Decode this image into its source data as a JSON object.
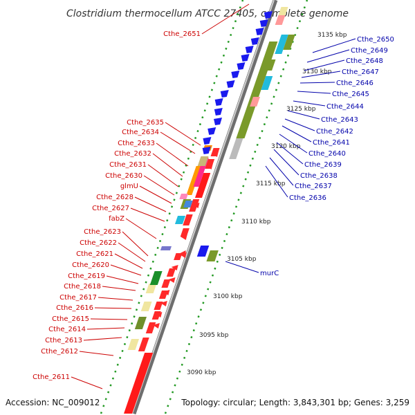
{
  "title": "Clostridium thermocellum ATCC 27405, complete genome",
  "footer": {
    "accession": "Accession: NC_009012",
    "topology": "Topology: circular; Length: 3,843,301 bp; Genes: 3,259"
  },
  "colors": {
    "reverse_label": "#cc0000",
    "forward_label": "#0000aa",
    "reverse_feature": "#ff0000",
    "forward_feature": "#0000ee",
    "backbone": "#999999",
    "gc_dots": "#22aa22"
  },
  "scale_ticks": [
    {
      "label": "3090 kbp",
      "kbp": 3090
    },
    {
      "label": "3095 kbp",
      "kbp": 3095
    },
    {
      "label": "3100 kbp",
      "kbp": 3100
    },
    {
      "label": "3105 kbp",
      "kbp": 3105
    },
    {
      "label": "3110 kbp",
      "kbp": 3110
    },
    {
      "label": "3115 kbp",
      "kbp": 3115
    },
    {
      "label": "3120 kbp",
      "kbp": 3120
    },
    {
      "label": "3125 kbp",
      "kbp": 3125
    },
    {
      "label": "3130 kbp",
      "kbp": 3130
    },
    {
      "label": "3135 kbp",
      "kbp": 3135
    }
  ],
  "reverse_genes": [
    "Cthe_2651",
    "Cthe_2635",
    "Cthe_2634",
    "Cthe_2633",
    "Cthe_2632",
    "Cthe_2631",
    "Cthe_2630",
    "glmU",
    "Cthe_2628",
    "Cthe_2627",
    "fabZ",
    "Cthe_2623",
    "Cthe_2622",
    "Cthe_2621",
    "Cthe_2620",
    "Cthe_2619",
    "Cthe_2618",
    "Cthe_2617",
    "Cthe_2616",
    "Cthe_2615",
    "Cthe_2614",
    "Cthe_2613",
    "Cthe_2612",
    "Cthe_2611"
  ],
  "forward_genes": [
    "Cthe_2650",
    "Cthe_2649",
    "Cthe_2648",
    "Cthe_2647",
    "Cthe_2646",
    "Cthe_2645",
    "Cthe_2644",
    "Cthe_2643",
    "Cthe_2642",
    "Cthe_2641",
    "Cthe_2640",
    "Cthe_2639",
    "Cthe_2638",
    "Cthe_2637",
    "Cthe_2636",
    "murC"
  ]
}
